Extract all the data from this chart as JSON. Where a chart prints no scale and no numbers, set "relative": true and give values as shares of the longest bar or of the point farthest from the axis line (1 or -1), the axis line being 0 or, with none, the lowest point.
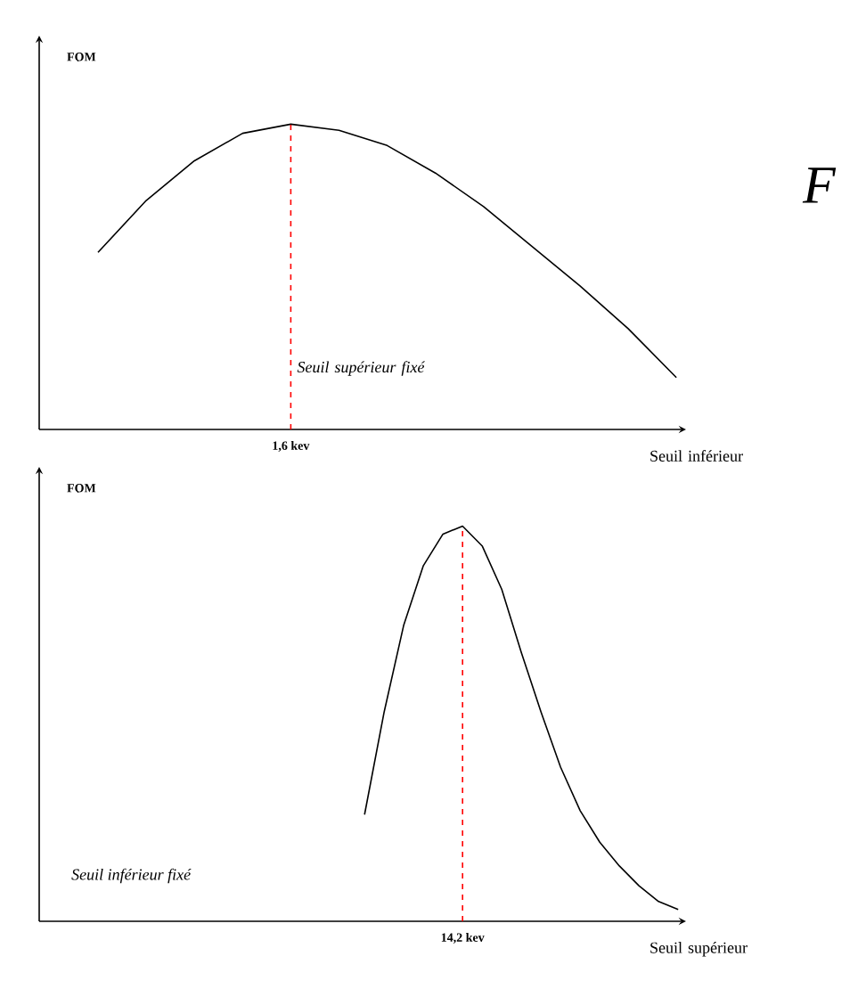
{
  "chart_data": [
    {
      "type": "line",
      "relative": true,
      "ylabel": "FOM",
      "xlabel": "Seuil inférieur",
      "color": "#000000",
      "categories": [
        null,
        null,
        null,
        null,
        null,
        null,
        null,
        null,
        null,
        null,
        null,
        null,
        null
      ],
      "values": [
        0.58,
        0.75,
        0.88,
        0.97,
        1,
        0.98,
        0.93,
        0.84,
        0.73,
        0.6,
        0.47,
        0.33,
        0.17
      ],
      "ref_lines": [
        {
          "axis": "x",
          "value": "1,6 kev",
          "color": "#ff0000",
          "line_style": "dashed"
        }
      ],
      "annotations": [
        "Seuil supérieur fixé",
        "F"
      ]
    },
    {
      "type": "line",
      "relative": true,
      "ylabel": "FOM",
      "xlabel": "Seuil supérieur",
      "color": "#000000",
      "categories": [
        null,
        null,
        null,
        null,
        null,
        null,
        null,
        null,
        null,
        null,
        null,
        null,
        null,
        null,
        null,
        null,
        null
      ],
      "values": [
        0.27,
        0.53,
        0.75,
        0.9,
        0.98,
        1,
        0.95,
        0.84,
        0.68,
        0.53,
        0.39,
        0.28,
        0.2,
        0.14,
        0.09,
        0.05,
        0.03
      ],
      "ref_lines": [
        {
          "axis": "x",
          "value": "14,2 kev",
          "color": "#ff0000",
          "line_style": "dashed"
        }
      ],
      "annotations": [
        "Seuil inférieur fixé"
      ]
    }
  ]
}
